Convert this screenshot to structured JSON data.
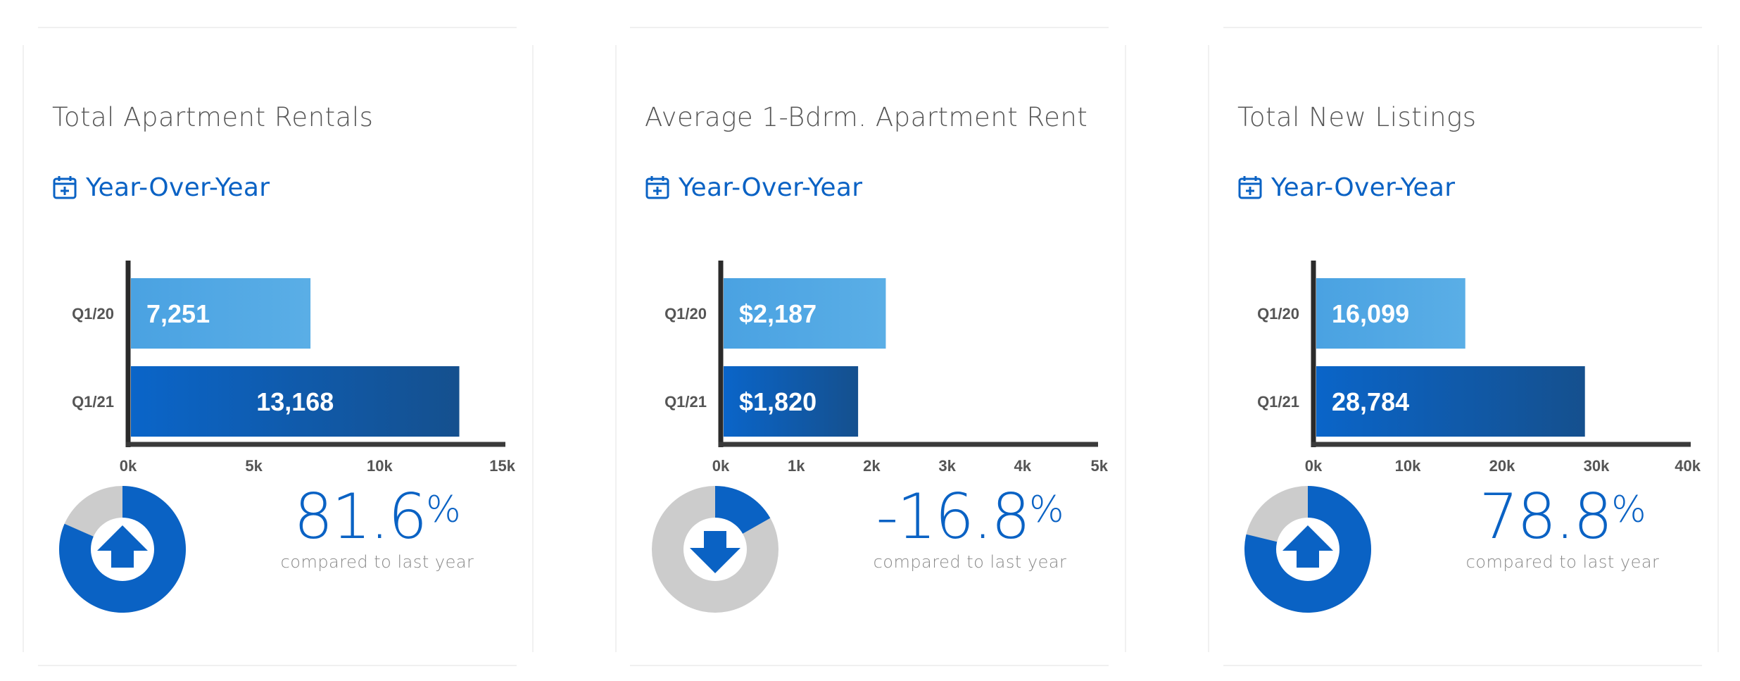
{
  "colors": {
    "accent": "#0a62c4",
    "bar_light": "#5aaee6",
    "bar_dark_start": "#0a65c9",
    "bar_dark_end": "#15508e",
    "donut_gray": "#cccccc",
    "axis": "#2a2a2a"
  },
  "cards": [
    {
      "title": "Total Apartment Rentals",
      "period_label": "Year-Over-Year",
      "period_icon": "calendar-plus-icon",
      "change_value": "81.6",
      "change_sign": "%",
      "change_caption": "compared to last year",
      "direction": "up",
      "donut_fraction": 0.816
    },
    {
      "title": "Average 1-Bdrm. Apartment Rent",
      "period_label": "Year-Over-Year",
      "period_icon": "calendar-plus-icon",
      "change_value": "-16.8",
      "change_sign": "%",
      "change_caption": "compared to last year",
      "direction": "down",
      "donut_fraction": 0.168
    },
    {
      "title": "Total New Listings",
      "period_label": "Year-Over-Year",
      "period_icon": "calendar-plus-icon",
      "change_value": "78.8",
      "change_sign": "%",
      "change_caption": "compared to last year",
      "direction": "up",
      "donut_fraction": 0.788
    }
  ],
  "chart_data": [
    {
      "type": "bar",
      "orientation": "horizontal",
      "categories": [
        "Q1/20",
        "Q1/21"
      ],
      "values": [
        7251,
        13168
      ],
      "value_labels": [
        "7,251",
        "13,168"
      ],
      "xlim": [
        0,
        15000
      ],
      "xticks": [
        0,
        5000,
        10000,
        15000
      ],
      "xtick_labels": [
        "0k",
        "5k",
        "10k",
        "15k"
      ],
      "grid": false
    },
    {
      "type": "bar",
      "orientation": "horizontal",
      "categories": [
        "Q1/20",
        "Q1/21"
      ],
      "values": [
        2187,
        1820
      ],
      "value_labels": [
        "$2,187",
        "$1,820"
      ],
      "xlim": [
        0,
        5000
      ],
      "xticks": [
        0,
        1000,
        2000,
        3000,
        4000,
        5000
      ],
      "xtick_labels": [
        "0k",
        "1k",
        "2k",
        "3k",
        "4k",
        "5k"
      ],
      "grid": false
    },
    {
      "type": "bar",
      "orientation": "horizontal",
      "categories": [
        "Q1/20",
        "Q1/21"
      ],
      "values": [
        16099,
        28784
      ],
      "value_labels": [
        "16,099",
        "28,784"
      ],
      "xlim": [
        0,
        40000
      ],
      "xticks": [
        0,
        10000,
        20000,
        30000,
        40000
      ],
      "xtick_labels": [
        "0k",
        "10k",
        "20k",
        "30k",
        "40k"
      ],
      "grid": false
    }
  ]
}
